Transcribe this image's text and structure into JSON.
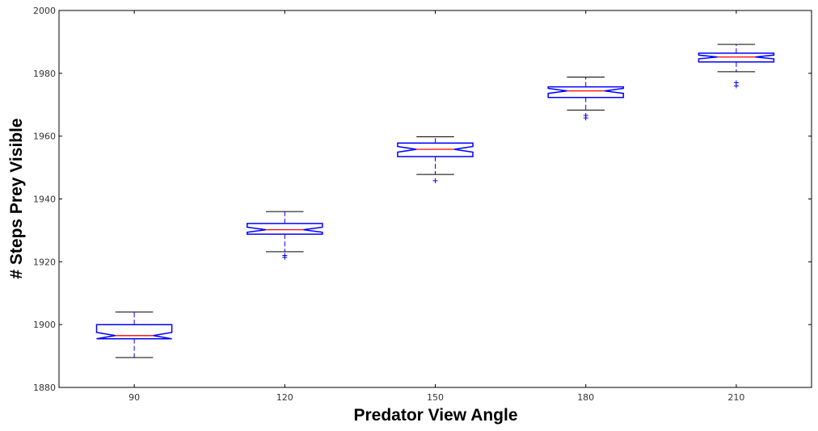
{
  "chart_data": {
    "type": "boxplot",
    "notched": true,
    "title": "",
    "xlabel": "Predator View Angle",
    "ylabel": "# Steps Prey Visible",
    "categories": [
      "90",
      "120",
      "150",
      "180",
      "210"
    ],
    "ylim": [
      1880,
      2000
    ],
    "yticks": [
      1880,
      1900,
      1920,
      1940,
      1960,
      1980,
      2000
    ],
    "yticks_labels": [
      "1880",
      "1900",
      "1920",
      "1940",
      "1960",
      "1980",
      "2000"
    ],
    "grid": false,
    "boxes": [
      {
        "category": "90",
        "whisker_low": 1889.5,
        "q1": 1895.5,
        "median": 1896.5,
        "q3": 1900.0,
        "whisker_high": 1904.0,
        "notch_low": 1895.5,
        "notch_high": 1897.5,
        "outliers": []
      },
      {
        "category": "120",
        "whisker_low": 1923.2,
        "q1": 1928.8,
        "median": 1930.2,
        "q3": 1932.2,
        "whisker_high": 1936.0,
        "notch_low": 1929.4,
        "notch_high": 1931.0,
        "outliers": [
          1922.0,
          1921.4
        ]
      },
      {
        "category": "150",
        "whisker_low": 1947.8,
        "q1": 1953.5,
        "median": 1955.8,
        "q3": 1957.8,
        "whisker_high": 1959.8,
        "notch_low": 1954.9,
        "notch_high": 1956.7,
        "outliers": [
          1945.8
        ]
      },
      {
        "category": "180",
        "whisker_low": 1968.3,
        "q1": 1972.3,
        "median": 1974.4,
        "q3": 1975.7,
        "whisker_high": 1978.8,
        "notch_low": 1973.6,
        "notch_high": 1975.2,
        "outliers": [
          1966.6,
          1965.8
        ]
      },
      {
        "category": "210",
        "whisker_low": 1980.5,
        "q1": 1983.6,
        "median": 1985.2,
        "q3": 1986.4,
        "whisker_high": 1989.2,
        "notch_low": 1984.6,
        "notch_high": 1985.8,
        "outliers": [
          1977.0,
          1976.0
        ]
      }
    ],
    "colors": {
      "box": "#0000ff",
      "median": "#ff0000",
      "whisker": "#000000",
      "outlier": "#0000ff",
      "axes": "#000000"
    }
  }
}
